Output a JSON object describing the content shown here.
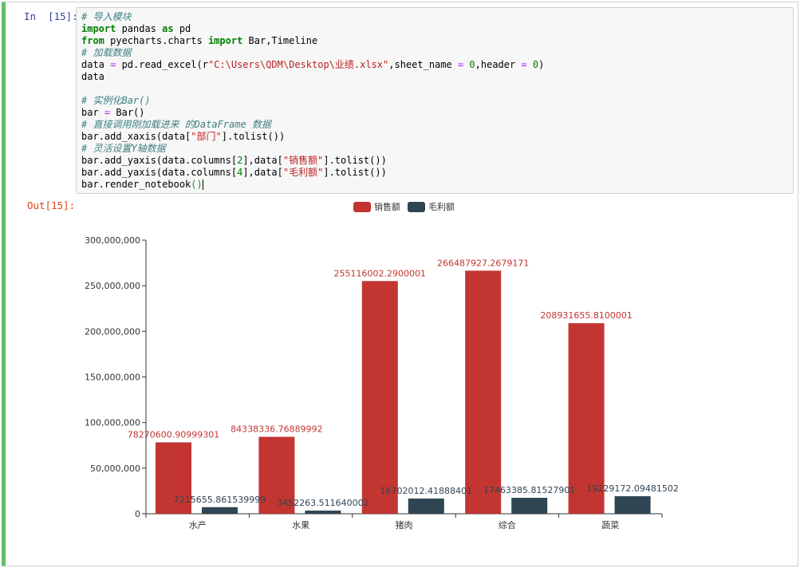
{
  "notebook": {
    "in_prompt": "In  [15]:",
    "out_prompt": "Out[15]:",
    "code_lines": [
      [
        [
          "cm",
          "# 导入模块"
        ]
      ],
      [
        [
          "kw",
          "import"
        ],
        [
          "",
          " pandas "
        ],
        [
          "kw",
          "as"
        ],
        [
          "",
          " pd"
        ]
      ],
      [
        [
          "kw",
          "from"
        ],
        [
          "",
          " pyecharts.charts "
        ],
        [
          "kw",
          "import"
        ],
        [
          "",
          " Bar,Timeline"
        ]
      ],
      [
        [
          "cm",
          "# 加载数据"
        ]
      ],
      [
        [
          "",
          "data "
        ],
        [
          "op",
          "="
        ],
        [
          "",
          " pd.read_excel(r"
        ],
        [
          "st",
          "\"C:\\Users\\QDM\\Desktop\\业绩.xlsx\""
        ],
        [
          "",
          ",sheet_name "
        ],
        [
          "op",
          "="
        ],
        [
          "",
          " "
        ],
        [
          "nm",
          "0"
        ],
        [
          "",
          ",header "
        ],
        [
          "op",
          "="
        ],
        [
          "",
          " "
        ],
        [
          "nm",
          "0"
        ],
        [
          "",
          ")"
        ]
      ],
      [
        [
          "",
          "data"
        ]
      ],
      [
        [
          "",
          ""
        ]
      ],
      [
        [
          "cm",
          "# 实例化Bar()"
        ]
      ],
      [
        [
          "",
          "bar "
        ],
        [
          "op",
          "="
        ],
        [
          "",
          " Bar()"
        ]
      ],
      [
        [
          "cm",
          "# 直接调用刚加载进来 的DataFrame 数据"
        ]
      ],
      [
        [
          "",
          "bar.add_xaxis(data["
        ],
        [
          "st",
          "\"部门\""
        ],
        [
          "",
          "].tolist())"
        ]
      ],
      [
        [
          "cm",
          "# 灵活设置Y轴数据"
        ]
      ],
      [
        [
          "",
          "bar.add_yaxis(data.columns["
        ],
        [
          "nm",
          "2"
        ],
        [
          "",
          "],data["
        ],
        [
          "st",
          "\"销售额\""
        ],
        [
          "",
          "].tolist())"
        ]
      ],
      [
        [
          "",
          "bar.add_yaxis(data.columns["
        ],
        [
          "nm",
          "4"
        ],
        [
          "",
          "],data["
        ],
        [
          "st",
          "\"毛利额\""
        ],
        [
          "",
          "].tolist())"
        ]
      ],
      [
        [
          "",
          "bar.render_notebook"
        ],
        [
          "br",
          "()"
        ]
      ]
    ]
  },
  "chart_data": {
    "type": "bar",
    "categories": [
      "水产",
      "水果",
      "猪肉",
      "综合",
      "蔬菜"
    ],
    "series": [
      {
        "name": "销售额",
        "color": "#c23531",
        "values": [
          78270600.90999301,
          84338336.76889992,
          255116002.2900001,
          266487927.2679171,
          208931655.8100001
        ],
        "labels": [
          "78270600.90999301",
          "84338336.76889992",
          "255116002.2900001",
          "266487927.2679171",
          "208931655.8100001"
        ]
      },
      {
        "name": "毛利额",
        "color": "#2f4554",
        "values": [
          7215655.861539999,
          3452263.511640002,
          16702012.41888401,
          17463385.81527901,
          19229172.09481502
        ],
        "labels": [
          "7215655.861539999",
          "3452263.511640002",
          "16702012.41888401",
          "17463385.81527901",
          "19229172.09481502"
        ]
      }
    ],
    "ylim": [
      0,
      300000000
    ],
    "y_ticks": [
      0,
      50000000,
      100000000,
      150000000,
      200000000,
      250000000,
      300000000
    ],
    "y_tick_labels": [
      "0",
      "50,000,000",
      "100,000,000",
      "150,000,000",
      "200,000,000",
      "250,000,000",
      "300,000,000"
    ],
    "legend_position": "top-center",
    "grid": false
  }
}
